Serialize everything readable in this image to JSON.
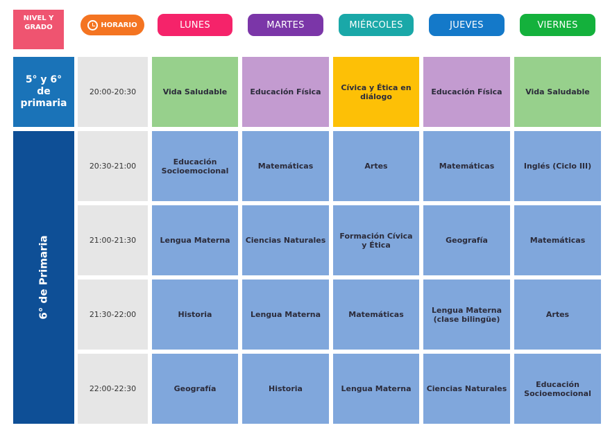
{
  "header": {
    "nivel": "NIVEL Y GRADO",
    "horario": "HORARIO",
    "horario_icon": "clock-icon",
    "days": [
      {
        "label": "LUNES",
        "color": "#f5236a"
      },
      {
        "label": "MARTES",
        "color": "#7b36a8"
      },
      {
        "label": "MIÉRCOLES",
        "color": "#1aa8a8"
      },
      {
        "label": "JUEVES",
        "color": "#1479c9"
      },
      {
        "label": "VIERNES",
        "color": "#14b13c"
      }
    ]
  },
  "levels": [
    {
      "label": "5° y 6° de primaria",
      "color": "#1a73b8"
    },
    {
      "label": "6° de Primaria",
      "color": "#0e4f96"
    }
  ],
  "colors": {
    "green": "#97d08c",
    "purple": "#c39bd0",
    "yellow": "#fdc006",
    "blue": "#80a7dc",
    "time": "#e6e6e6"
  },
  "rows": [
    {
      "time": "20:00-20:30",
      "cells": [
        {
          "text": "Vida Saludable",
          "color": "#97d08c"
        },
        {
          "text": "Educación Física",
          "color": "#c39bd0"
        },
        {
          "text": "Cívica y Ética en diálogo",
          "color": "#fdc006"
        },
        {
          "text": "Educación Física",
          "color": "#c39bd0"
        },
        {
          "text": "Vida Saludable",
          "color": "#97d08c"
        }
      ]
    },
    {
      "time": "20:30-21:00",
      "cells": [
        {
          "text": "Educación Socioemocional",
          "color": "#80a7dc"
        },
        {
          "text": "Matemáticas",
          "color": "#80a7dc"
        },
        {
          "text": "Artes",
          "color": "#80a7dc"
        },
        {
          "text": "Matemáticas",
          "color": "#80a7dc"
        },
        {
          "text": "Inglés (Ciclo III)",
          "color": "#80a7dc"
        }
      ]
    },
    {
      "time": "21:00-21:30",
      "cells": [
        {
          "text": "Lengua Materna",
          "color": "#80a7dc"
        },
        {
          "text": "Ciencias Naturales",
          "color": "#80a7dc"
        },
        {
          "text": "Formación Cívica y Ética",
          "color": "#80a7dc"
        },
        {
          "text": "Geografía",
          "color": "#80a7dc"
        },
        {
          "text": "Matemáticas",
          "color": "#80a7dc"
        }
      ]
    },
    {
      "time": "21:30-22:00",
      "cells": [
        {
          "text": "Historia",
          "color": "#80a7dc"
        },
        {
          "text": "Lengua Materna",
          "color": "#80a7dc"
        },
        {
          "text": "Matemáticas",
          "color": "#80a7dc"
        },
        {
          "text": "Lengua Materna (clase bilingüe)",
          "color": "#80a7dc"
        },
        {
          "text": "Artes",
          "color": "#80a7dc"
        }
      ]
    },
    {
      "time": "22:00-22:30",
      "cells": [
        {
          "text": "Geografía",
          "color": "#80a7dc"
        },
        {
          "text": "Historia",
          "color": "#80a7dc"
        },
        {
          "text": "Lengua Materna",
          "color": "#80a7dc"
        },
        {
          "text": "Ciencias Naturales",
          "color": "#80a7dc"
        },
        {
          "text": "Educación Socioemocional",
          "color": "#80a7dc"
        }
      ]
    }
  ]
}
